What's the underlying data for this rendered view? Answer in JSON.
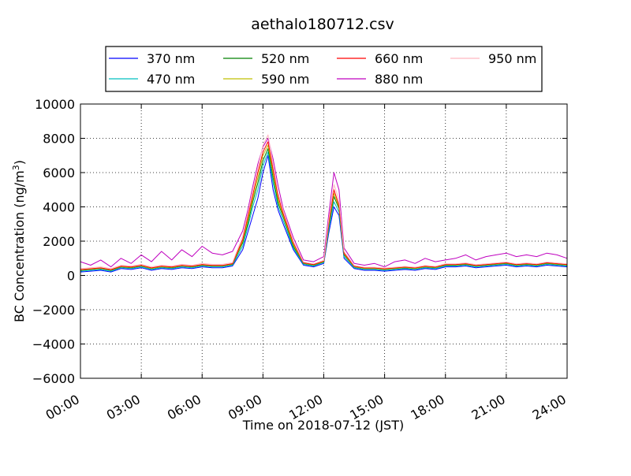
{
  "chart_data": {
    "type": "line",
    "title": "aethalo180712.csv",
    "xlabel": "Time on 2018-07-12 (JST)",
    "ylabel_main": "BC Concentration (ng/m",
    "ylabel_sup": "3",
    "ylabel_close": ")",
    "xlim": [
      "00:00",
      "24:00"
    ],
    "ylim": [
      -6000,
      10000
    ],
    "x_tick_labels": [
      "00:00",
      "03:00",
      "06:00",
      "09:00",
      "12:00",
      "15:00",
      "18:00",
      "21:00",
      "24:00"
    ],
    "y_tick_labels": [
      "10000",
      "8000",
      "6000",
      "4000",
      "2000",
      "0",
      "−2000",
      "−4000",
      "−6000"
    ],
    "y_tick_values": [
      10000,
      8000,
      6000,
      4000,
      2000,
      0,
      -2000,
      -4000,
      -6000
    ],
    "grid": true,
    "legend_position": "top-center",
    "x_unit": "hour of day",
    "x": [
      0,
      0.5,
      1,
      1.5,
      2,
      2.5,
      3,
      3.5,
      4,
      4.5,
      5,
      5.5,
      6,
      6.5,
      7,
      7.5,
      8,
      8.25,
      8.5,
      8.75,
      9,
      9.25,
      9.5,
      9.75,
      10,
      10.5,
      11,
      11.5,
      12,
      12.25,
      12.5,
      12.75,
      13,
      13.5,
      14,
      14.5,
      15,
      15.5,
      16,
      16.5,
      17,
      17.5,
      18,
      18.5,
      19,
      19.5,
      20,
      20.5,
      21,
      21.5,
      22,
      22.5,
      23,
      23.5,
      24
    ],
    "series": [
      {
        "name": "370 nm",
        "color": "#0000ff",
        "values": [
          200,
          250,
          300,
          200,
          400,
          350,
          450,
          300,
          400,
          350,
          450,
          400,
          500,
          450,
          450,
          550,
          1500,
          2500,
          3500,
          4500,
          6000,
          7000,
          5000,
          3800,
          3000,
          1500,
          600,
          500,
          700,
          2500,
          4000,
          3500,
          1000,
          400,
          300,
          300,
          250,
          300,
          350,
          300,
          400,
          350,
          500,
          500,
          550,
          450,
          500,
          550,
          600,
          500,
          550,
          500,
          600,
          550,
          500
        ]
      },
      {
        "name": "470 nm",
        "color": "#00bfbf",
        "values": [
          250,
          300,
          350,
          250,
          450,
          400,
          500,
          350,
          450,
          400,
          500,
          450,
          550,
          500,
          500,
          600,
          1700,
          2800,
          4000,
          5000,
          6400,
          7200,
          5400,
          4000,
          3200,
          1600,
          650,
          550,
          750,
          2700,
          4300,
          3700,
          1100,
          450,
          350,
          350,
          300,
          350,
          400,
          350,
          450,
          400,
          550,
          550,
          600,
          500,
          550,
          600,
          650,
          550,
          600,
          550,
          650,
          600,
          550
        ]
      },
      {
        "name": "520 nm",
        "color": "#008000",
        "values": [
          300,
          350,
          400,
          300,
          500,
          450,
          550,
          400,
          500,
          450,
          550,
          500,
          600,
          550,
          550,
          650,
          1900,
          3000,
          4300,
          5400,
          6700,
          7400,
          5700,
          4200,
          3400,
          1700,
          700,
          600,
          800,
          2900,
          4600,
          3900,
          1200,
          500,
          400,
          400,
          350,
          400,
          450,
          400,
          500,
          450,
          600,
          600,
          650,
          550,
          600,
          650,
          700,
          600,
          650,
          600,
          700,
          650,
          600
        ]
      },
      {
        "name": "590 nm",
        "color": "#bfbf00",
        "values": [
          320,
          370,
          420,
          320,
          520,
          470,
          570,
          420,
          520,
          470,
          570,
          520,
          620,
          570,
          570,
          670,
          2000,
          3200,
          4500,
          5700,
          7000,
          7600,
          6000,
          4400,
          3500,
          1800,
          720,
          620,
          820,
          3000,
          4800,
          4000,
          1250,
          520,
          420,
          420,
          370,
          420,
          470,
          420,
          520,
          470,
          620,
          620,
          670,
          570,
          620,
          670,
          720,
          620,
          670,
          620,
          720,
          670,
          620
        ]
      },
      {
        "name": "660 nm",
        "color": "#ff0000",
        "values": [
          340,
          390,
          440,
          340,
          540,
          490,
          590,
          440,
          540,
          490,
          590,
          540,
          640,
          590,
          590,
          690,
          2100,
          3400,
          4700,
          6000,
          7200,
          7800,
          6200,
          4600,
          3600,
          1900,
          740,
          640,
          840,
          3100,
          5000,
          4100,
          1300,
          540,
          440,
          440,
          390,
          440,
          490,
          440,
          540,
          490,
          640,
          640,
          690,
          590,
          640,
          690,
          740,
          640,
          690,
          640,
          740,
          690,
          640
        ]
      },
      {
        "name": "880 nm",
        "color": "#bf00bf",
        "values": [
          800,
          600,
          900,
          500,
          1000,
          700,
          1200,
          800,
          1400,
          900,
          1500,
          1100,
          1700,
          1300,
          1200,
          1400,
          2600,
          3800,
          5200,
          6500,
          7500,
          8000,
          6800,
          5200,
          3900,
          2200,
          900,
          800,
          1100,
          3600,
          6000,
          5000,
          1600,
          700,
          600,
          700,
          500,
          800,
          900,
          700,
          1000,
          800,
          900,
          1000,
          1200,
          900,
          1100,
          1200,
          1300,
          1100,
          1200,
          1100,
          1300,
          1200,
          1000
        ]
      },
      {
        "name": "950 nm",
        "color": "#ffb6c1",
        "values": [
          400,
          450,
          500,
          400,
          600,
          550,
          650,
          500,
          600,
          550,
          650,
          600,
          700,
          650,
          650,
          750,
          2300,
          3600,
          5000,
          6300,
          7600,
          8200,
          6500,
          4800,
          3800,
          2000,
          780,
          680,
          880,
          3300,
          5300,
          4400,
          1400,
          580,
          480,
          480,
          430,
          480,
          530,
          480,
          580,
          530,
          680,
          680,
          730,
          630,
          680,
          730,
          780,
          680,
          730,
          680,
          780,
          730,
          680
        ]
      }
    ]
  }
}
